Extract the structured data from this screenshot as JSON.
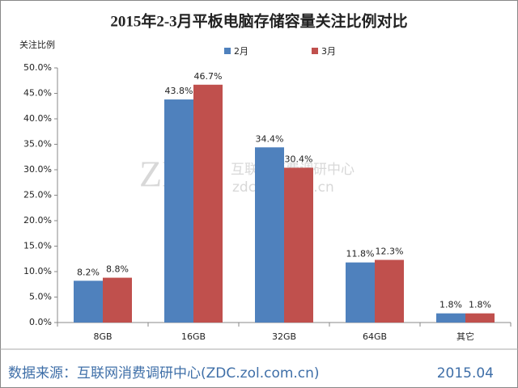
{
  "chart_data": {
    "type": "bar",
    "title": "2015年2-3月平板电脑存储容量关注比例对比",
    "y_label": "关注比例",
    "categories": [
      "8GB",
      "16GB",
      "32GB",
      "64GB",
      "其它"
    ],
    "series": [
      {
        "name": "2月",
        "color": "#4f81bd",
        "values": [
          8.2,
          43.8,
          34.4,
          11.8,
          1.8
        ],
        "value_labels": [
          "8.2%",
          "43.8%",
          "34.4%",
          "11.8%",
          "1.8%"
        ]
      },
      {
        "name": "3月",
        "color": "#c0504d",
        "values": [
          8.8,
          46.7,
          30.4,
          12.3,
          1.8
        ],
        "value_labels": [
          "8.8%",
          "46.7%",
          "30.4%",
          "12.3%",
          "1.8%"
        ]
      }
    ],
    "ylim": [
      0,
      50
    ],
    "yticks": [
      {
        "value": 0,
        "label": "0.0%"
      },
      {
        "value": 5,
        "label": "5.0%"
      },
      {
        "value": 10,
        "label": "10.0%"
      },
      {
        "value": 15,
        "label": "15.0%"
      },
      {
        "value": 20,
        "label": "20.0%"
      },
      {
        "value": 25,
        "label": "25.0%"
      },
      {
        "value": 30,
        "label": "30.0%"
      },
      {
        "value": 35,
        "label": "35.0%"
      },
      {
        "value": 40,
        "label": "40.0%"
      },
      {
        "value": 45,
        "label": "45.0%"
      },
      {
        "value": 50,
        "label": "50.0%"
      }
    ],
    "watermark": {
      "logo": "ZDC",
      "name": "互联网消费调研中心",
      "url": "zdc.zol.com.cn"
    },
    "source": "数据来源：互联网消费调研中心(ZDC.zol.com.cn)",
    "date": "2015.04"
  }
}
